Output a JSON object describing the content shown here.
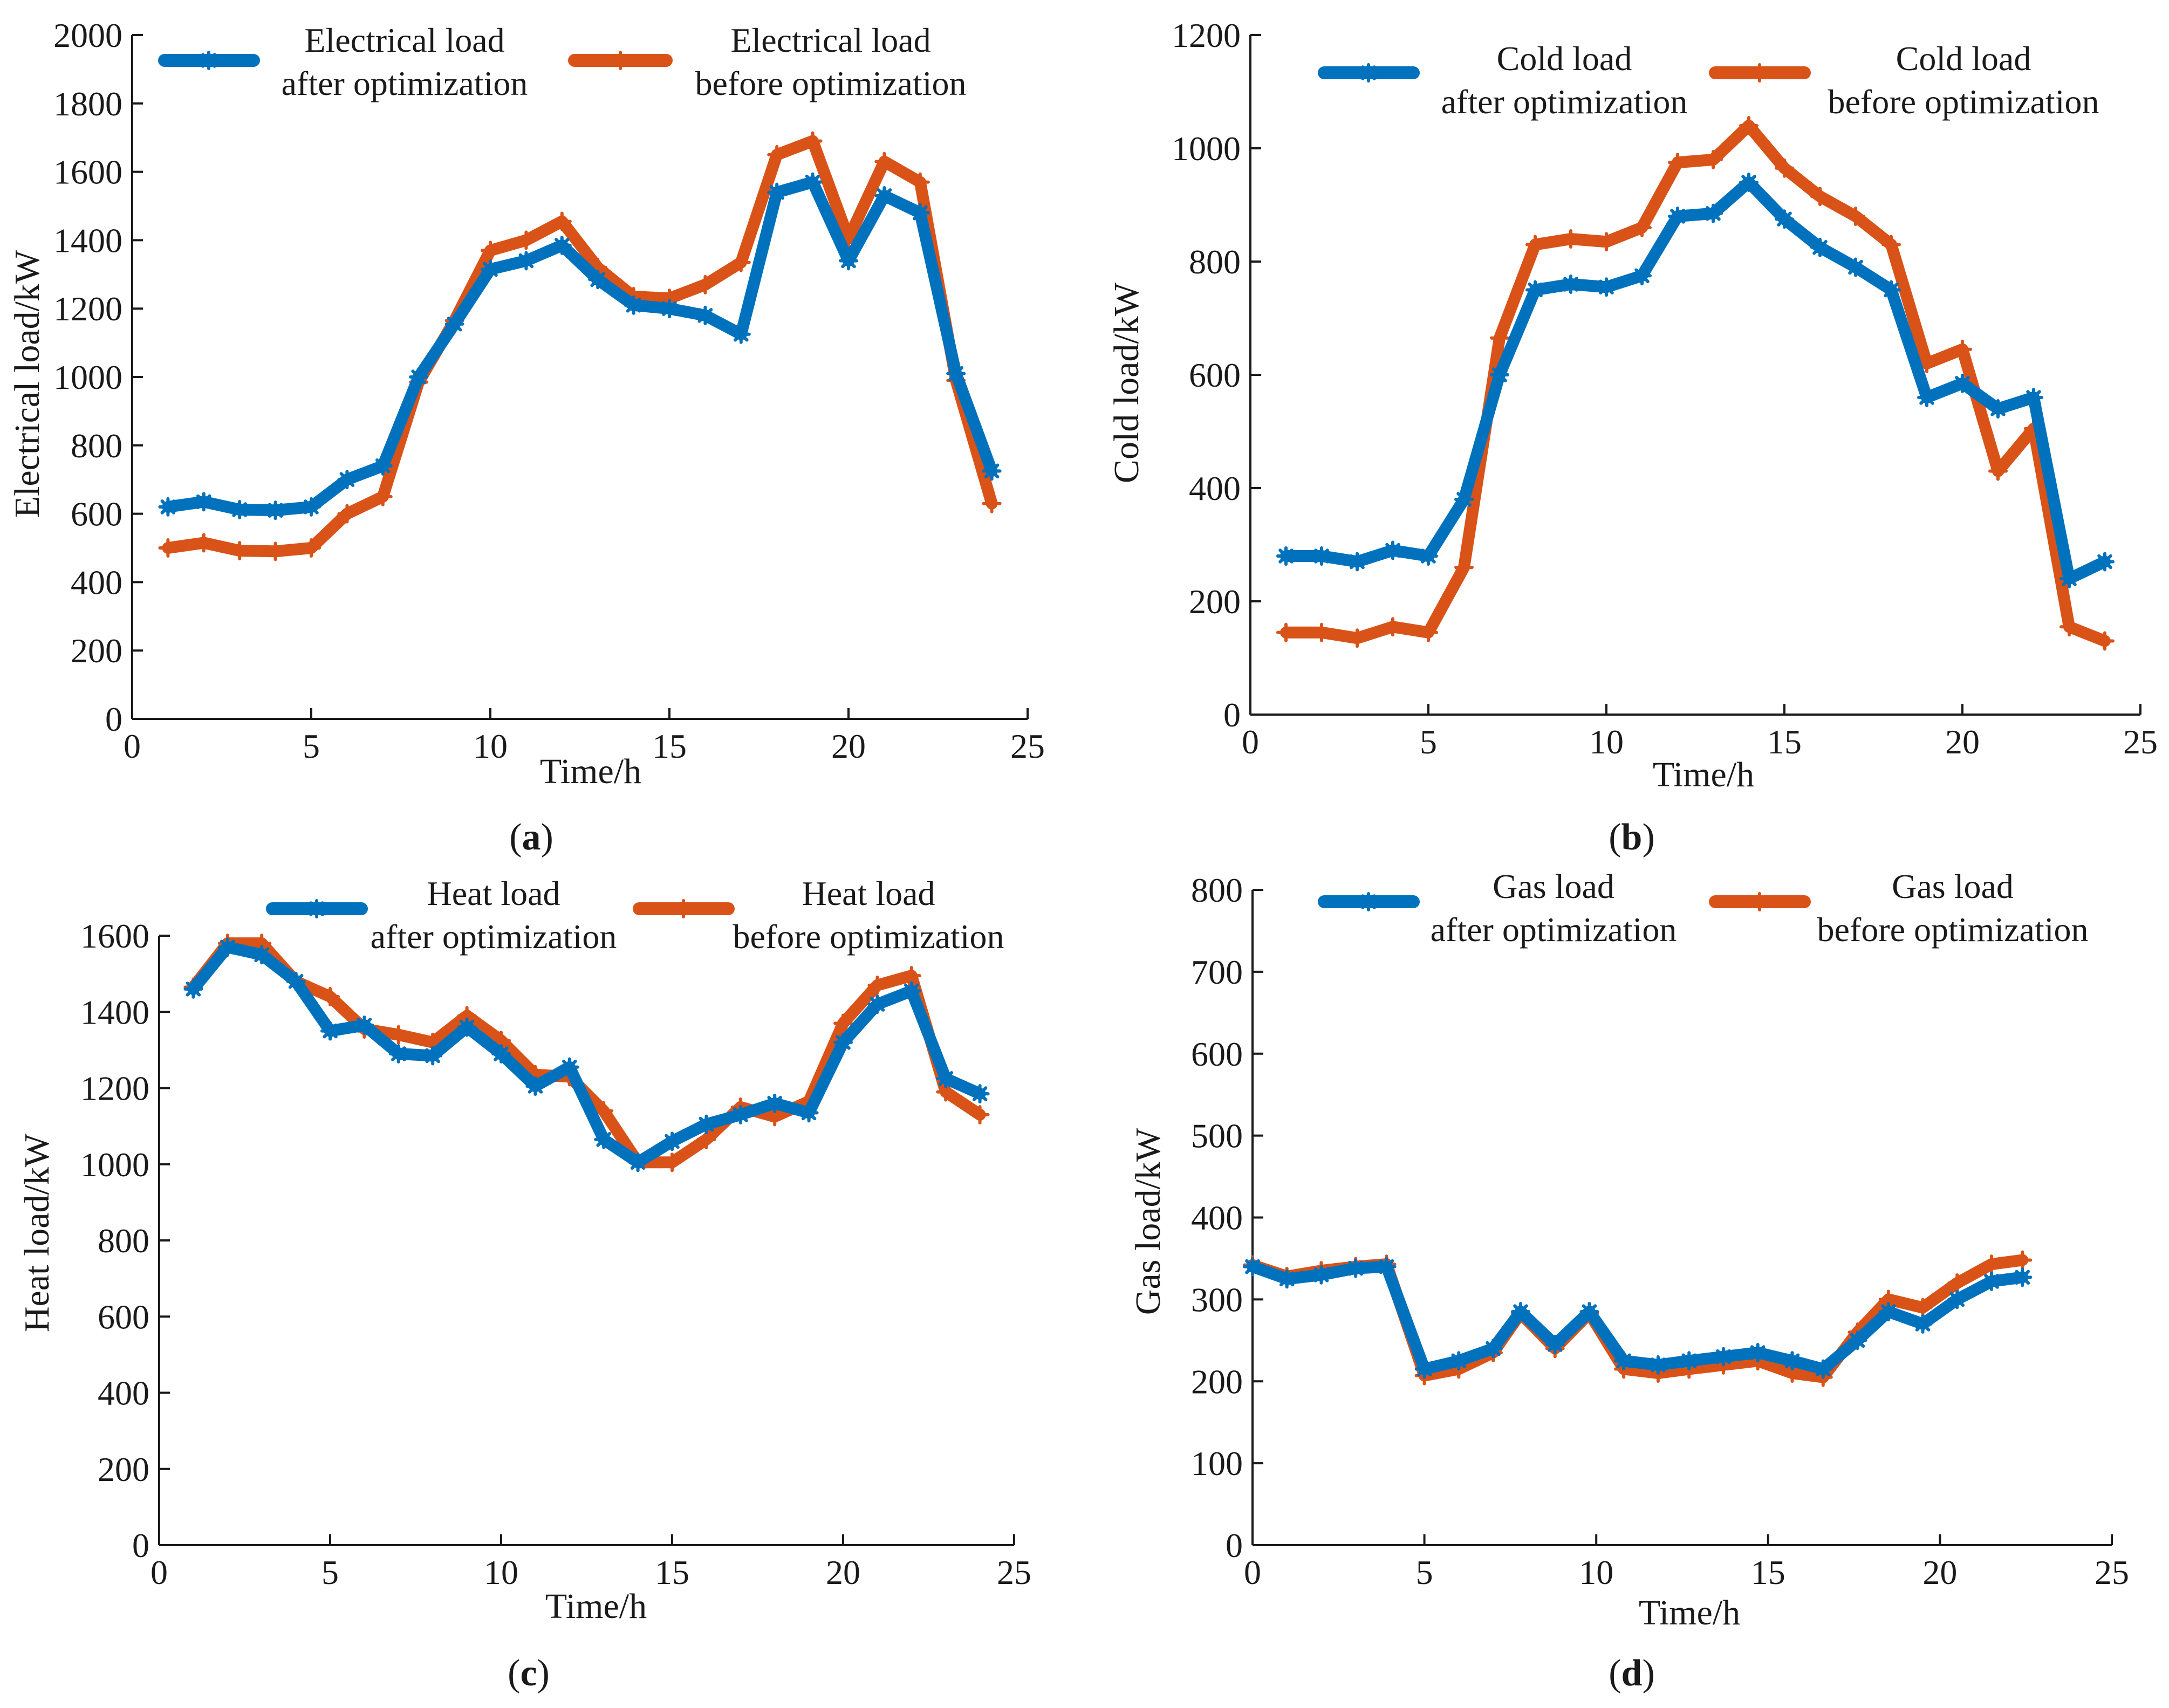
{
  "chart_data": [
    {
      "panel": "a",
      "type": "line",
      "xlabel": "Time/h",
      "ylabel": "Electrical load/kW",
      "xlim": [
        0,
        25
      ],
      "ylim": [
        0,
        2000
      ],
      "xticks": [
        0,
        5,
        10,
        15,
        20,
        25
      ],
      "yticks": [
        0,
        200,
        400,
        600,
        800,
        1000,
        1200,
        1400,
        1600,
        1800,
        2000
      ],
      "x": [
        1,
        2,
        3,
        4,
        5,
        6,
        7,
        8,
        9,
        10,
        11,
        12,
        13,
        14,
        15,
        16,
        17,
        18,
        19,
        20,
        21,
        22,
        23,
        24
      ],
      "series": [
        {
          "name_line1": "Electrical load",
          "name_line2": "after optimization",
          "color": "#0072BD",
          "marker": "asterisk",
          "values": [
            620,
            635,
            612,
            610,
            620,
            700,
            740,
            1000,
            1155,
            1315,
            1340,
            1385,
            1285,
            1210,
            1200,
            1180,
            1125,
            1540,
            1570,
            1340,
            1530,
            1480,
            1010,
            725
          ]
        },
        {
          "name_line1": "Electrical load",
          "name_line2": "before optimization",
          "color": "#D95319",
          "marker": "plus",
          "values": [
            500,
            515,
            492,
            490,
            500,
            600,
            650,
            985,
            1165,
            1370,
            1400,
            1455,
            1320,
            1235,
            1230,
            1270,
            1335,
            1650,
            1690,
            1405,
            1630,
            1570,
            990,
            630
          ]
        }
      ]
    },
    {
      "panel": "b",
      "type": "line",
      "xlabel": "Time/h",
      "ylabel": "Cold load/kW",
      "xlim": [
        0,
        25
      ],
      "ylim": [
        0,
        1200
      ],
      "xticks": [
        0,
        5,
        10,
        15,
        20,
        25
      ],
      "yticks": [
        0,
        200,
        400,
        600,
        800,
        1000,
        1200
      ],
      "x": [
        1,
        2,
        3,
        4,
        5,
        6,
        7,
        8,
        9,
        10,
        11,
        12,
        13,
        14,
        15,
        16,
        17,
        18,
        19,
        20,
        21,
        22,
        23,
        24
      ],
      "series": [
        {
          "name_line1": "Cold load",
          "name_line2": "after optimization",
          "color": "#0072BD",
          "marker": "asterisk",
          "values": [
            280,
            280,
            270,
            290,
            280,
            380,
            600,
            750,
            760,
            755,
            775,
            880,
            885,
            940,
            875,
            825,
            790,
            750,
            560,
            585,
            540,
            560,
            240,
            270
          ]
        },
        {
          "name_line1": "Cold load",
          "name_line2": "before optimization",
          "color": "#D95319",
          "marker": "plus",
          "values": [
            145,
            145,
            135,
            155,
            145,
            260,
            665,
            830,
            840,
            835,
            860,
            975,
            980,
            1040,
            965,
            915,
            880,
            830,
            620,
            645,
            430,
            505,
            155,
            130
          ]
        }
      ]
    },
    {
      "panel": "c",
      "type": "line",
      "xlabel": "Time/h",
      "ylabel": "Heat load/kW",
      "xlim": [
        0,
        25
      ],
      "ylim": [
        0,
        1600
      ],
      "xticks": [
        0,
        5,
        10,
        15,
        20,
        25
      ],
      "yticks": [
        0,
        200,
        400,
        600,
        800,
        1000,
        1200,
        1400,
        1600
      ],
      "x": [
        1,
        2,
        3,
        4,
        5,
        6,
        7,
        8,
        9,
        10,
        11,
        12,
        13,
        14,
        15,
        16,
        17,
        18,
        19,
        20,
        21,
        22,
        23,
        24
      ],
      "series": [
        {
          "name_line1": "Heat load",
          "name_line2": "after optimization",
          "color": "#0072BD",
          "marker": "asterisk",
          "values": [
            1460,
            1570,
            1550,
            1480,
            1350,
            1365,
            1290,
            1285,
            1360,
            1290,
            1205,
            1255,
            1065,
            1005,
            1060,
            1105,
            1130,
            1160,
            1135,
            1320,
            1420,
            1455,
            1225,
            1185
          ]
        },
        {
          "name_line1": "Heat load",
          "name_line2": "before optimization",
          "color": "#D95319",
          "marker": "plus",
          "values": [
            1465,
            1580,
            1580,
            1480,
            1440,
            1355,
            1340,
            1320,
            1390,
            1325,
            1235,
            1230,
            1140,
            1005,
            1005,
            1065,
            1150,
            1125,
            1165,
            1370,
            1470,
            1495,
            1190,
            1130
          ]
        }
      ]
    },
    {
      "panel": "d",
      "type": "line",
      "xlabel": "Time/h",
      "ylabel": "Gas load/kW",
      "xlim": [
        0,
        25
      ],
      "ylim": [
        0,
        800
      ],
      "xticks": [
        0,
        5,
        10,
        15,
        20,
        25
      ],
      "yticks": [
        0,
        100,
        200,
        300,
        400,
        500,
        600,
        700,
        800
      ],
      "x": [
        0,
        1,
        2,
        3,
        3.9,
        5,
        6,
        7,
        7.8,
        8.8,
        9.8,
        10.8,
        11.8,
        12.7,
        13.7,
        14.7,
        15.7,
        16.6,
        17.6,
        18.5,
        19.5,
        20.5,
        21.5,
        22.4
      ],
      "series": [
        {
          "name_line1": "Gas load",
          "name_line2": "after optimization",
          "color": "#0072BD",
          "marker": "asterisk",
          "values": [
            340,
            325,
            330,
            338,
            340,
            215,
            225,
            240,
            285,
            245,
            285,
            225,
            220,
            225,
            230,
            235,
            225,
            215,
            250,
            285,
            270,
            300,
            322,
            327
          ]
        },
        {
          "name_line1": "Gas load",
          "name_line2": "before optimization",
          "color": "#D95319",
          "marker": "plus",
          "values": [
            342,
            328,
            335,
            340,
            343,
            207,
            215,
            235,
            283,
            240,
            283,
            215,
            210,
            215,
            220,
            225,
            210,
            205,
            260,
            300,
            290,
            320,
            343,
            348
          ]
        }
      ]
    }
  ],
  "captions": [
    "a",
    "b",
    "c",
    "d"
  ]
}
